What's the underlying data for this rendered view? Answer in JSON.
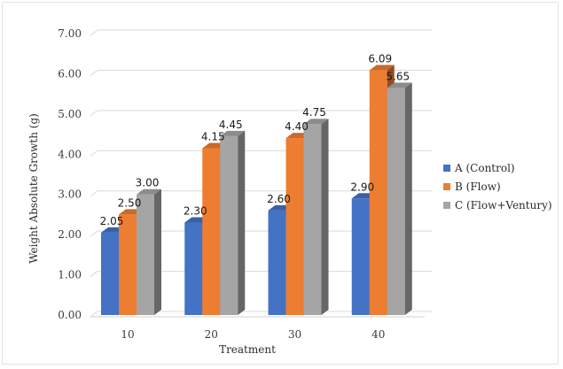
{
  "chart_data": {
    "type": "bar",
    "categories": [
      "10",
      "20",
      "30",
      "40"
    ],
    "series": [
      {
        "name": "A (Control)",
        "values": [
          2.05,
          2.3,
          2.6,
          2.9
        ],
        "labels": [
          "2.05",
          "2.30",
          "2.60",
          "2.90"
        ],
        "color": "#4472C4"
      },
      {
        "name": "B (Flow)",
        "values": [
          2.5,
          4.15,
          4.4,
          6.09
        ],
        "labels": [
          "2.50",
          "4.15",
          "4.40",
          "6.09"
        ],
        "color": "#ED7D31"
      },
      {
        "name": "C (Flow+Ventury)",
        "values": [
          3.0,
          4.45,
          4.75,
          5.65
        ],
        "labels": [
          "3.00",
          "4.45",
          "4.75",
          "5.65"
        ],
        "color": "#A5A5A5"
      }
    ],
    "title": "",
    "xlabel": "Treatment",
    "ylabel": "Weight  Absolute  Growth  (g)",
    "ylim": [
      0,
      7
    ],
    "yticks": [
      "0.00",
      "1.00",
      "2.00",
      "3.00",
      "4.00",
      "5.00",
      "6.00",
      "7.00"
    ],
    "grid": true,
    "style": "3d-column",
    "legend_position": "right"
  }
}
